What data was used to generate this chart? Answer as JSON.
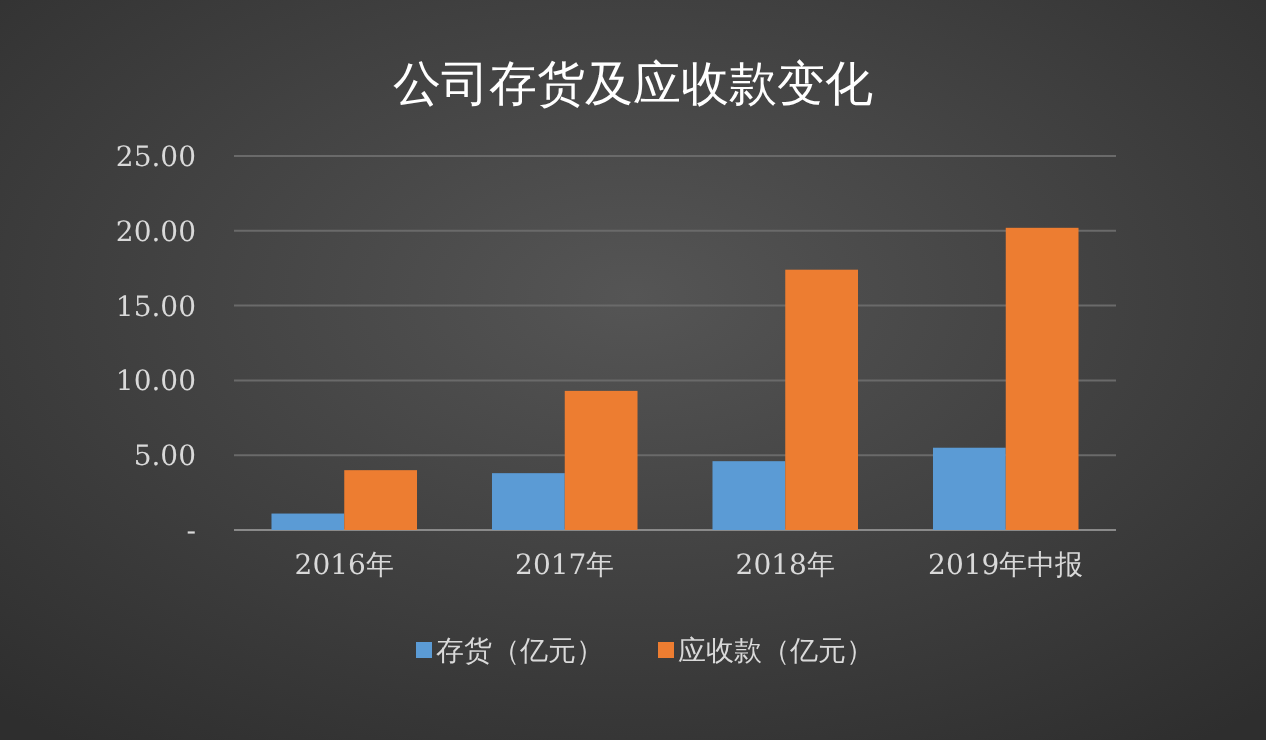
{
  "chart_data": {
    "type": "bar",
    "title": "公司存货及应收款变化",
    "categories": [
      "2016年",
      "2017年",
      "2018年",
      "2019年中报"
    ],
    "series": [
      {
        "name": "存货（亿元）",
        "color": "#5b9bd5",
        "values": [
          1.1,
          3.8,
          4.6,
          5.5
        ]
      },
      {
        "name": "应收款（亿元）",
        "color": "#ed7d31",
        "values": [
          4.0,
          9.3,
          17.4,
          20.2
        ]
      }
    ],
    "ylim": [
      0,
      25
    ],
    "yticks": [
      {
        "value": 0,
        "label": "-"
      },
      {
        "value": 5,
        "label": "5.00"
      },
      {
        "value": 10,
        "label": "10.00"
      },
      {
        "value": 15,
        "label": "15.00"
      },
      {
        "value": 20,
        "label": "20.00"
      },
      {
        "value": 25,
        "label": "25.00"
      }
    ],
    "grid": "y",
    "legend": "bottom"
  }
}
